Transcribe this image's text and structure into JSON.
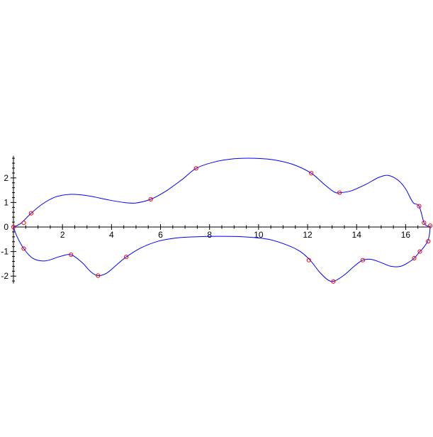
{
  "chart_data": {
    "type": "line",
    "title": "",
    "xlabel": "",
    "ylabel": "",
    "xlim": [
      0,
      17
    ],
    "ylim": [
      -2.3,
      2.9
    ],
    "grid": false,
    "legend": "none",
    "x_ticks": [
      {
        "value": 2,
        "label": "2"
      },
      {
        "value": 4,
        "label": "4"
      },
      {
        "value": 6,
        "label": "6"
      },
      {
        "value": 8,
        "label": "8"
      },
      {
        "value": 10,
        "label": "10"
      },
      {
        "value": 12,
        "label": "12"
      },
      {
        "value": 14,
        "label": "14"
      },
      {
        "value": 16,
        "label": "16"
      }
    ],
    "y_ticks": [
      {
        "value": 2,
        "label": "2"
      },
      {
        "value": 1,
        "label": "1"
      },
      {
        "value": 0,
        "label": "0"
      },
      {
        "value": -1,
        "label": "-1"
      },
      {
        "value": -2,
        "label": "-2"
      }
    ],
    "colors": {
      "curve": "#0000ff",
      "points": "#ff0000",
      "axes": "#000000"
    },
    "series": [
      {
        "kind": "curve",
        "values": [
          [
            0.0,
            0.0
          ],
          [
            0.3,
            0.15
          ],
          [
            0.72,
            0.56
          ],
          [
            1.2,
            0.95
          ],
          [
            1.7,
            1.22
          ],
          [
            2.3,
            1.33
          ],
          [
            3.0,
            1.28
          ],
          [
            3.8,
            1.12
          ],
          [
            4.5,
            1.0
          ],
          [
            5.0,
            0.98
          ],
          [
            5.6,
            1.13
          ],
          [
            6.2,
            1.45
          ],
          [
            6.9,
            1.95
          ],
          [
            7.45,
            2.39
          ],
          [
            8.2,
            2.65
          ],
          [
            9.0,
            2.78
          ],
          [
            9.8,
            2.8
          ],
          [
            10.6,
            2.74
          ],
          [
            11.4,
            2.55
          ],
          [
            12.15,
            2.19
          ],
          [
            12.7,
            1.72
          ],
          [
            13.1,
            1.42
          ],
          [
            13.35,
            1.4
          ],
          [
            13.8,
            1.48
          ],
          [
            14.4,
            1.75
          ],
          [
            14.9,
            2.02
          ],
          [
            15.3,
            2.1
          ],
          [
            15.7,
            1.9
          ],
          [
            16.0,
            1.55
          ],
          [
            16.3,
            1.0
          ],
          [
            16.55,
            0.85
          ],
          [
            16.75,
            0.17
          ],
          [
            16.9,
            0.04
          ],
          [
            17.0,
            0.0
          ]
        ]
      },
      {
        "kind": "curve",
        "values": [
          [
            0.0,
            0.0
          ],
          [
            0.15,
            -0.4
          ],
          [
            0.42,
            -0.88
          ],
          [
            0.8,
            -1.28
          ],
          [
            1.3,
            -1.38
          ],
          [
            1.9,
            -1.2
          ],
          [
            2.35,
            -1.13
          ],
          [
            2.8,
            -1.45
          ],
          [
            3.15,
            -1.82
          ],
          [
            3.45,
            -1.98
          ],
          [
            3.8,
            -1.88
          ],
          [
            4.2,
            -1.55
          ],
          [
            4.6,
            -1.22
          ],
          [
            5.2,
            -0.85
          ],
          [
            5.9,
            -0.58
          ],
          [
            6.6,
            -0.45
          ],
          [
            7.4,
            -0.4
          ],
          [
            8.4,
            -0.38
          ],
          [
            9.4,
            -0.4
          ],
          [
            10.4,
            -0.5
          ],
          [
            11.2,
            -0.75
          ],
          [
            11.7,
            -1.0
          ],
          [
            12.1,
            -1.35
          ],
          [
            12.5,
            -1.85
          ],
          [
            12.85,
            -2.17
          ],
          [
            13.1,
            -2.2
          ],
          [
            13.5,
            -1.95
          ],
          [
            13.9,
            -1.6
          ],
          [
            14.25,
            -1.35
          ],
          [
            14.6,
            -1.32
          ],
          [
            15.0,
            -1.45
          ],
          [
            15.4,
            -1.6
          ],
          [
            15.8,
            -1.6
          ],
          [
            16.15,
            -1.42
          ],
          [
            16.35,
            -1.27
          ],
          [
            16.58,
            -1.0
          ],
          [
            16.72,
            -0.85
          ],
          [
            16.9,
            -0.58
          ],
          [
            16.97,
            -0.3
          ],
          [
            17.0,
            0.0
          ]
        ]
      },
      {
        "kind": "points",
        "values": [
          [
            0.0,
            0.0
          ],
          [
            0.42,
            0.17
          ],
          [
            0.72,
            0.56
          ],
          [
            5.6,
            1.13
          ],
          [
            7.45,
            2.39
          ],
          [
            12.15,
            2.19
          ],
          [
            13.3,
            1.4
          ],
          [
            16.55,
            0.85
          ],
          [
            16.75,
            0.17
          ],
          [
            17.0,
            0.05
          ],
          [
            0.42,
            -0.88
          ],
          [
            2.35,
            -1.13
          ],
          [
            3.45,
            -1.98
          ],
          [
            4.6,
            -1.22
          ],
          [
            12.05,
            -1.35
          ],
          [
            13.05,
            -2.22
          ],
          [
            14.25,
            -1.35
          ],
          [
            16.35,
            -1.27
          ],
          [
            16.58,
            -1.0
          ],
          [
            16.92,
            -0.58
          ]
        ]
      }
    ]
  }
}
